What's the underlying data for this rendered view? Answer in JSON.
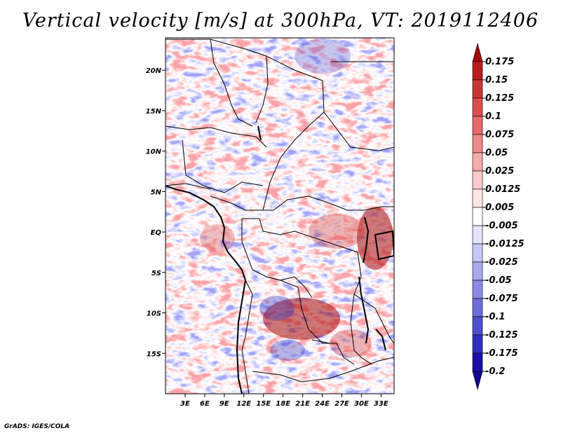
{
  "title": "Vertical velocity [m/s] at 300hPa, VT: 2019112406",
  "credit": "GrADS: IGES/COLA",
  "colors": {
    "negative_strong": "#1a00a8",
    "negative_weak": "#eaeaff",
    "positive_weak": "#ffecec",
    "positive_strong": "#a80000",
    "border": "#000000"
  },
  "map": {
    "lon_range": [
      0,
      35
    ],
    "lat_range": [
      -20,
      24
    ],
    "lat_labels": [
      "20N",
      "15N",
      "10N",
      "5N",
      "EQ",
      "5S",
      "10S",
      "15S"
    ],
    "lat_values": [
      20,
      15,
      10,
      5,
      0,
      -5,
      -10,
      -15
    ],
    "lon_labels": [
      "3E",
      "6E",
      "9E",
      "12E",
      "15E",
      "18E",
      "21E",
      "24E",
      "27E",
      "30E",
      "33E"
    ],
    "lon_values": [
      3,
      6,
      9,
      12,
      15,
      18,
      21,
      24,
      27,
      30,
      33
    ]
  },
  "colorbar": {
    "labels": [
      "0.175",
      "0.15",
      "0.125",
      "0.1",
      "0.075",
      "0.05",
      "0.025",
      "0.0125",
      "0.005",
      "-0.005",
      "-0.0125",
      "-0.025",
      "-0.05",
      "-0.075",
      "-0.1",
      "-0.125",
      "-0.175",
      "-0.2"
    ],
    "colors": [
      "#a50a0a",
      "#bb1c1c",
      "#cc3535",
      "#d94f4f",
      "#e56a6a",
      "#ee8a8a",
      "#f5abab",
      "#fbcbcb",
      "#fee6e6",
      "#ffffff",
      "#e3e3fb",
      "#c7c7f5",
      "#a9a9ee",
      "#8b8be5",
      "#6d6ddb",
      "#4f4fcf",
      "#3030bd",
      "#1a10a8",
      "#14008c"
    ]
  }
}
